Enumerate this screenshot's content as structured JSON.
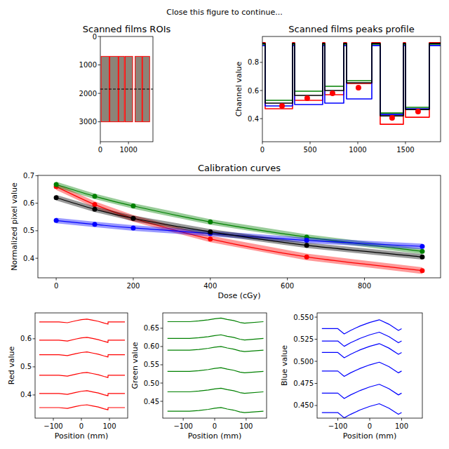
{
  "suptitle": "Close this figure to continue...",
  "chart_data": [
    {
      "type": "image",
      "title": "Scanned films ROIs",
      "xlim": [
        0,
        1868
      ],
      "ylim": [
        3700,
        0
      ],
      "xticks": [
        0,
        1000
      ],
      "yticks": [
        0,
        1000,
        2000,
        3000
      ],
      "color": "red",
      "rois": [
        {
          "x": [
            29,
            316
          ],
          "y": [
            700,
            3000
          ]
        },
        {
          "x": [
            338,
            632
          ],
          "y": [
            700,
            3000
          ]
        },
        {
          "x": [
            654,
            853
          ],
          "y": [
            700,
            3000
          ]
        },
        {
          "x": [
            882,
            1147
          ],
          "y": [
            700,
            3000
          ]
        },
        {
          "x": [
            1235,
            1478
          ],
          "y": [
            700,
            3000
          ]
        },
        {
          "x": [
            1500,
            1750
          ],
          "y": [
            700,
            3000
          ]
        }
      ],
      "hline": {
        "value": 1850,
        "color": "black",
        "line_style": "dashed"
      }
    },
    {
      "type": "line",
      "title": "Scanned films peaks profile",
      "y_label": "Channel value",
      "xlim": [
        0,
        1868
      ],
      "ylim": [
        0.236,
        0.984
      ],
      "xticks": [
        0,
        500,
        1000,
        1500
      ],
      "yticks": [
        0.4,
        0.6,
        0.8
      ],
      "x": [
        0,
        29,
        29,
        316,
        316,
        338,
        338,
        632,
        632,
        654,
        654,
        853,
        853,
        882,
        882,
        1147,
        1147,
        1235,
        1235,
        1478,
        1478,
        1500,
        1500,
        1750,
        1750,
        1868
      ],
      "series": [
        {
          "color": "red",
          "values": [
            0.94,
            0.94,
            0.47,
            0.47,
            0.94,
            0.94,
            0.53,
            0.53,
            0.94,
            0.94,
            0.57,
            0.57,
            0.94,
            0.94,
            0.65,
            0.65,
            0.94,
            0.94,
            0.36,
            0.36,
            0.94,
            0.94,
            0.41,
            0.41,
            0.94,
            0.94
          ]
        },
        {
          "color": "green",
          "values": [
            0.93,
            0.93,
            0.53,
            0.53,
            0.93,
            0.93,
            0.595,
            0.595,
            0.93,
            0.93,
            0.63,
            0.63,
            0.93,
            0.93,
            0.67,
            0.67,
            0.93,
            0.93,
            0.44,
            0.44,
            0.93,
            0.93,
            0.48,
            0.48,
            0.93,
            0.93
          ]
        },
        {
          "color": "blue",
          "values": [
            0.92,
            0.92,
            0.49,
            0.49,
            0.92,
            0.92,
            0.5,
            0.5,
            0.92,
            0.92,
            0.51,
            0.51,
            0.92,
            0.92,
            0.54,
            0.54,
            0.92,
            0.92,
            0.43,
            0.43,
            0.92,
            0.92,
            0.47,
            0.47,
            0.92,
            0.92
          ]
        },
        {
          "color": "black",
          "values": [
            0.935,
            0.935,
            0.51,
            0.51,
            0.935,
            0.935,
            0.565,
            0.565,
            0.935,
            0.935,
            0.6,
            0.6,
            0.935,
            0.935,
            0.655,
            0.655,
            0.935,
            0.935,
            0.42,
            0.42,
            0.935,
            0.935,
            0.465,
            0.465,
            0.935,
            0.935
          ]
        },
        {
          "type": "scatter",
          "color": "red",
          "x": [
            206,
            470,
            735,
            1007,
            1360,
            1632
          ],
          "values": [
            0.49,
            0.545,
            0.58,
            0.62,
            0.405,
            0.45
          ]
        }
      ]
    },
    {
      "type": "line",
      "title": "Calibration curves",
      "x_label": "Dose (cGy)",
      "y_label": "Normalized pixel value",
      "xlim": [
        -47.5,
        997.5
      ],
      "ylim": [
        0.329,
        0.701
      ],
      "xticks": [
        0,
        200,
        400,
        600,
        800
      ],
      "yticks": [
        0.4,
        0.5,
        0.6,
        0.7
      ],
      "x": [
        0,
        100,
        200,
        400,
        650,
        950
      ],
      "series": [
        {
          "color": "red",
          "marker": "o",
          "values": [
            0.66,
            0.595,
            0.545,
            0.47,
            0.405,
            0.355
          ],
          "uncertainty": [
            0.012,
            0.012,
            0.012,
            0.012,
            0.012,
            0.012
          ]
        },
        {
          "color": "green",
          "marker": "o",
          "values": [
            0.668,
            0.625,
            0.59,
            0.532,
            0.477,
            0.425
          ],
          "uncertainty": [
            0.01,
            0.01,
            0.01,
            0.01,
            0.01,
            0.01
          ]
        },
        {
          "color": "blue",
          "marker": "o",
          "values": [
            0.537,
            0.523,
            0.51,
            0.49,
            0.465,
            0.443
          ],
          "uncertainty": [
            0.01,
            0.01,
            0.01,
            0.01,
            0.01,
            0.01
          ]
        },
        {
          "color": "black",
          "marker": "o",
          "values": [
            0.62,
            0.578,
            0.545,
            0.496,
            0.447,
            0.405
          ],
          "uncertainty": [
            0.01,
            0.01,
            0.01,
            0.01,
            0.01,
            0.01
          ]
        }
      ]
    },
    {
      "type": "line",
      "x_label": "Position (mm)",
      "y_label": "Red value",
      "xlim": [
        -165,
        165
      ],
      "ylim": [
        0.3175,
        0.692
      ],
      "xticks": [
        {
          "value": -100,
          "label": "−100"
        },
        0,
        100
      ],
      "yticks": [
        0.4,
        0.5,
        0.6
      ],
      "x": [
        -150,
        -80,
        -50,
        -20,
        0,
        20,
        40,
        60,
        80,
        95,
        95,
        155
      ],
      "series": [
        {
          "color": "red",
          "values": [
            0.66,
            0.66,
            0.657,
            0.664,
            0.668,
            0.67,
            0.666,
            0.662,
            0.656,
            0.652,
            0.66,
            0.66
          ]
        },
        {
          "color": "red",
          "values": [
            0.595,
            0.595,
            0.592,
            0.599,
            0.603,
            0.605,
            0.601,
            0.597,
            0.591,
            0.587,
            0.595,
            0.595
          ]
        },
        {
          "color": "red",
          "values": [
            0.543,
            0.543,
            0.54,
            0.547,
            0.551,
            0.553,
            0.549,
            0.545,
            0.539,
            0.535,
            0.543,
            0.543
          ]
        },
        {
          "color": "red",
          "values": [
            0.47,
            0.47,
            0.467,
            0.474,
            0.478,
            0.48,
            0.476,
            0.472,
            0.466,
            0.462,
            0.47,
            0.47
          ]
        },
        {
          "color": "red",
          "values": [
            0.405,
            0.405,
            0.402,
            0.409,
            0.413,
            0.415,
            0.411,
            0.407,
            0.401,
            0.397,
            0.405,
            0.405
          ]
        },
        {
          "color": "red",
          "values": [
            0.355,
            0.355,
            0.352,
            0.359,
            0.363,
            0.365,
            0.361,
            0.357,
            0.351,
            0.347,
            0.355,
            0.355
          ]
        }
      ]
    },
    {
      "type": "line",
      "x_label": "Position (mm)",
      "y_label": "Green value",
      "xlim": [
        -165,
        165
      ],
      "ylim": [
        0.404,
        0.692
      ],
      "xticks": [
        {
          "value": -100,
          "label": "−100"
        },
        0,
        100
      ],
      "yticks": [
        0.45,
        {
          "value": 0.5,
          "label": "0.50"
        },
        0.55,
        {
          "value": 0.6,
          "label": "0.60"
        },
        0.65
      ],
      "x": [
        -150,
        -80,
        -50,
        -20,
        0,
        20,
        40,
        60,
        80,
        95,
        155
      ],
      "series": [
        {
          "color": "green",
          "values": [
            0.668,
            0.668,
            0.67,
            0.673,
            0.676,
            0.678,
            0.674,
            0.671,
            0.666,
            0.664,
            0.668
          ]
        },
        {
          "color": "green",
          "values": [
            0.622,
            0.622,
            0.624,
            0.627,
            0.63,
            0.632,
            0.628,
            0.625,
            0.62,
            0.618,
            0.622
          ]
        },
        {
          "color": "green",
          "values": [
            0.59,
            0.59,
            0.592,
            0.595,
            0.598,
            0.6,
            0.596,
            0.593,
            0.588,
            0.586,
            0.59
          ]
        },
        {
          "color": "green",
          "values": [
            0.532,
            0.532,
            0.534,
            0.537,
            0.54,
            0.542,
            0.538,
            0.535,
            0.53,
            0.528,
            0.532
          ]
        },
        {
          "color": "green",
          "values": [
            0.476,
            0.476,
            0.478,
            0.481,
            0.484,
            0.486,
            0.482,
            0.479,
            0.474,
            0.472,
            0.476
          ]
        },
        {
          "color": "green",
          "values": [
            0.423,
            0.423,
            0.425,
            0.428,
            0.431,
            0.433,
            0.429,
            0.426,
            0.421,
            0.419,
            0.423
          ]
        }
      ]
    },
    {
      "type": "line",
      "x_label": "Position (mm)",
      "y_label": "Blue value",
      "xlim": [
        -165,
        165
      ],
      "ylim": [
        0.4357,
        0.5548
      ],
      "xticks": [
        {
          "value": -100,
          "label": "−100"
        },
        0,
        100
      ],
      "yticks": [
        {
          "value": 0.45,
          "label": "0.450"
        },
        {
          "value": 0.475,
          "label": "0.475"
        },
        {
          "value": 0.5,
          "label": "0.500"
        },
        {
          "value": 0.525,
          "label": "0.525"
        },
        {
          "value": 0.55,
          "label": "0.550"
        }
      ],
      "x": [
        -150,
        -100,
        -80,
        -60,
        -30,
        0,
        30,
        60,
        90,
        100
      ],
      "series": [
        {
          "color": "blue",
          "values": [
            0.537,
            0.537,
            0.531,
            0.535,
            0.54,
            0.544,
            0.547,
            0.542,
            0.535,
            0.537
          ]
        },
        {
          "color": "blue",
          "values": [
            0.523,
            0.523,
            0.517,
            0.521,
            0.526,
            0.53,
            0.533,
            0.528,
            0.521,
            0.523
          ]
        },
        {
          "color": "blue",
          "values": [
            0.51,
            0.51,
            0.504,
            0.508,
            0.513,
            0.517,
            0.52,
            0.515,
            0.508,
            0.51
          ]
        },
        {
          "color": "blue",
          "values": [
            0.489,
            0.489,
            0.483,
            0.487,
            0.492,
            0.496,
            0.499,
            0.494,
            0.487,
            0.489
          ]
        },
        {
          "color": "blue",
          "values": [
            0.464,
            0.464,
            0.458,
            0.462,
            0.467,
            0.471,
            0.474,
            0.469,
            0.462,
            0.464
          ]
        },
        {
          "color": "blue",
          "values": [
            0.442,
            0.442,
            0.436,
            0.44,
            0.445,
            0.449,
            0.452,
            0.447,
            0.44,
            0.442
          ]
        }
      ]
    }
  ]
}
